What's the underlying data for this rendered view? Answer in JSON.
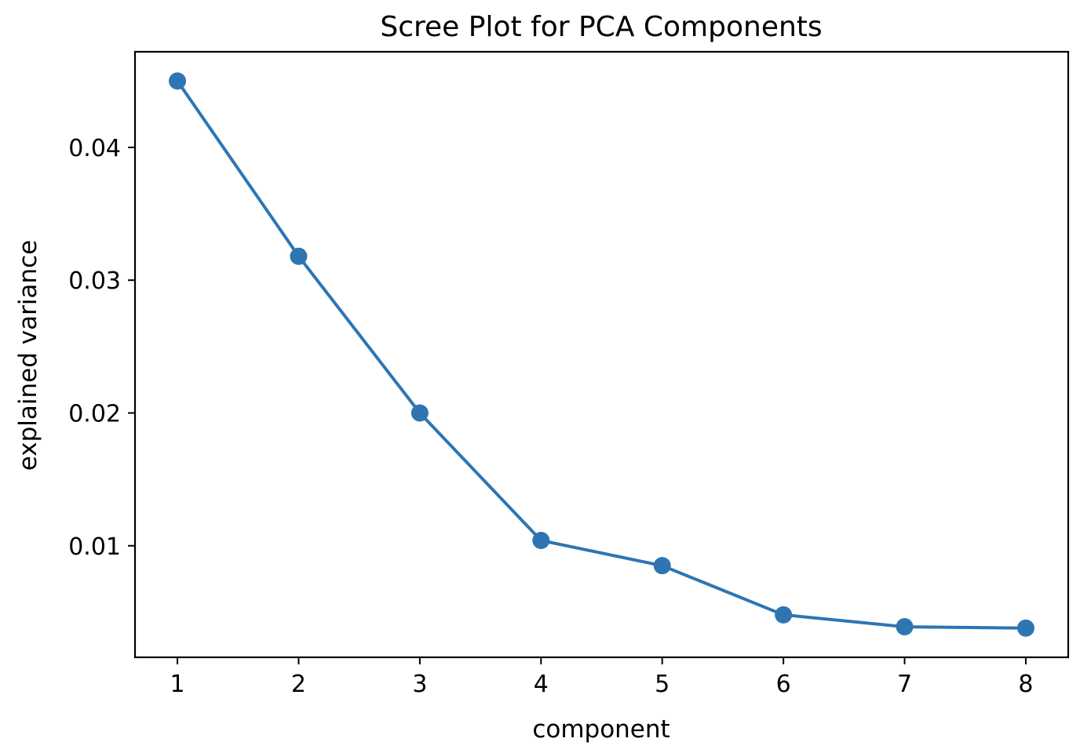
{
  "chart_data": {
    "type": "line",
    "title": "Scree Plot for PCA Components",
    "xlabel": "component",
    "ylabel": "explained variance",
    "x": [
      1,
      2,
      3,
      4,
      5,
      6,
      7,
      8
    ],
    "series": [
      {
        "values": [
          0.045,
          0.0318,
          0.02,
          0.0104,
          0.0085,
          0.0048,
          0.0039,
          0.0038
        ]
      }
    ],
    "xticks": [
      "1",
      "2",
      "3",
      "4",
      "5",
      "6",
      "7",
      "8"
    ],
    "yticks": [
      {
        "value": 0.01,
        "label": "0.01"
      },
      {
        "value": 0.02,
        "label": "0.02"
      },
      {
        "value": 0.03,
        "label": "0.03"
      },
      {
        "value": 0.04,
        "label": "0.04"
      }
    ],
    "xlim": [
      0.65,
      8.35
    ],
    "ylim": [
      0.0016,
      0.0472
    ],
    "marker": "circle",
    "grid": false,
    "legend": "none",
    "line_color": "#2e75b2"
  }
}
